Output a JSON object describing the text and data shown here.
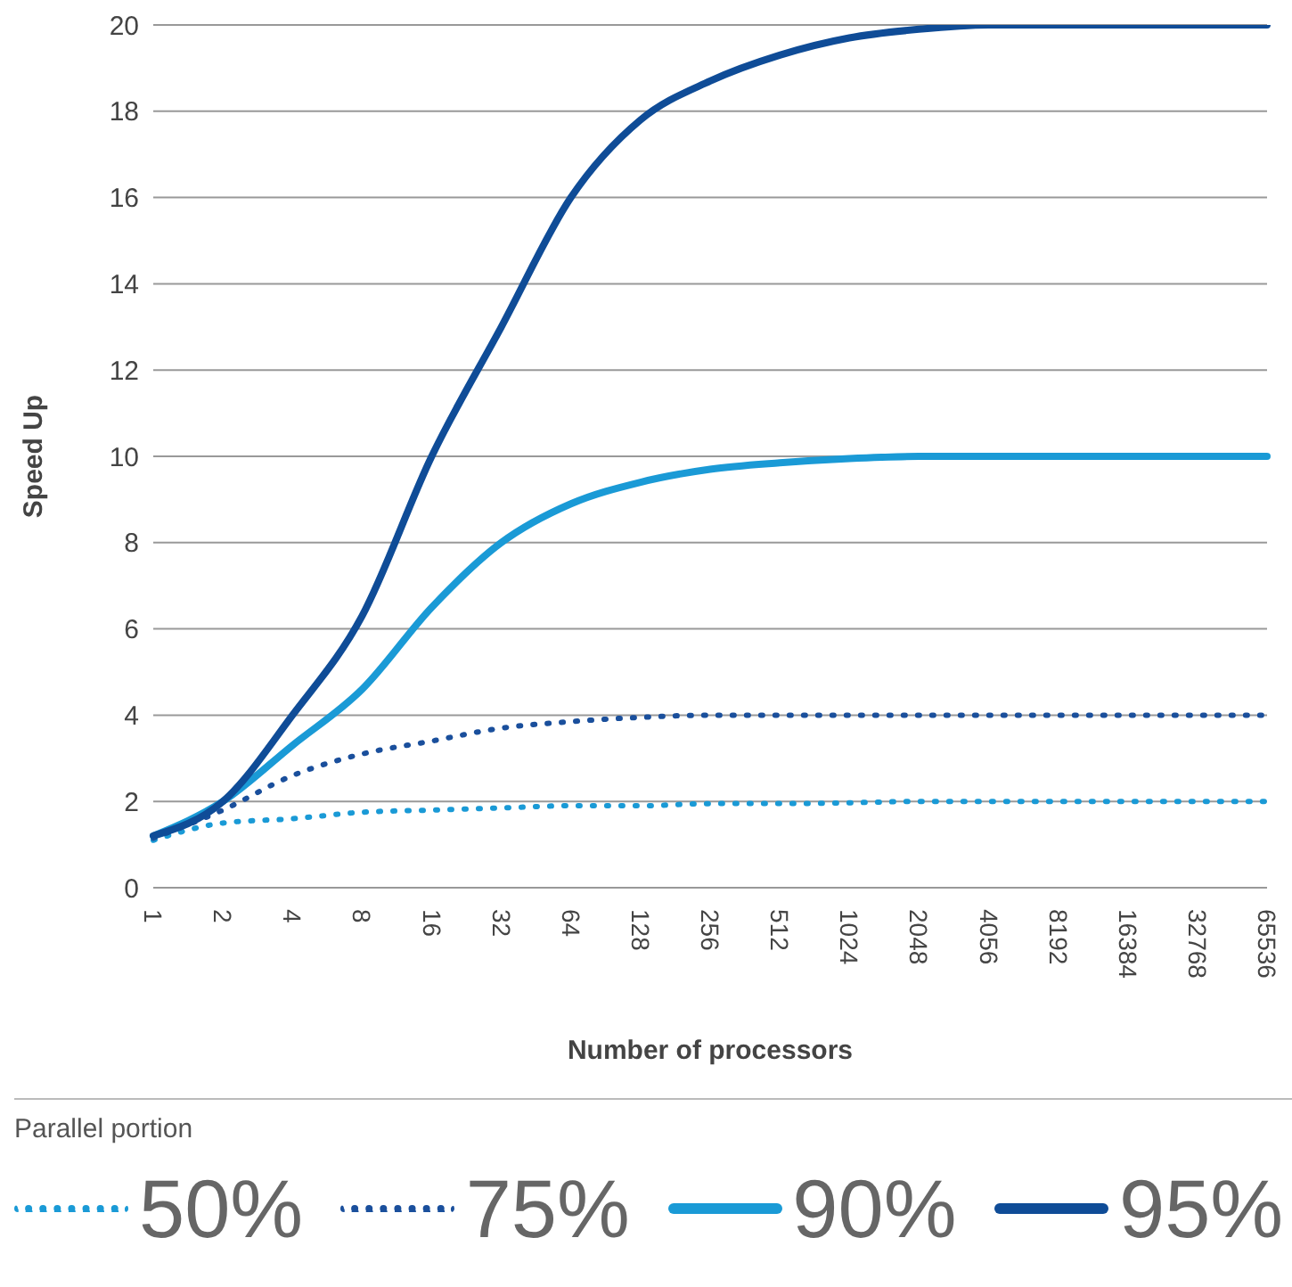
{
  "chart_data": {
    "type": "line",
    "xlabel": "Number of processors",
    "ylabel": "Speed Up",
    "legend_title": "Parallel portion",
    "categories": [
      "1",
      "2",
      "4",
      "8",
      "16",
      "32",
      "64",
      "128",
      "256",
      "512",
      "1024",
      "2048",
      "4056",
      "8192",
      "16384",
      "32768",
      "65536"
    ],
    "series": [
      {
        "name": "50%",
        "color": "#1a9ad6",
        "line_style": "dotted",
        "values": [
          1.1,
          1.5,
          1.6,
          1.75,
          1.8,
          1.85,
          1.9,
          1.9,
          1.95,
          1.95,
          1.97,
          2,
          2,
          2,
          2,
          2,
          2
        ]
      },
      {
        "name": "75%",
        "color": "#1a4f9c",
        "line_style": "dotted",
        "values": [
          1.15,
          1.8,
          2.6,
          3.1,
          3.4,
          3.7,
          3.85,
          3.95,
          4,
          4,
          4,
          4,
          4,
          4,
          4,
          4,
          4
        ]
      },
      {
        "name": "90%",
        "color": "#1a9ad6",
        "line_style": "solid",
        "values": [
          1.2,
          2,
          3.3,
          4.6,
          6.5,
          8,
          8.9,
          9.4,
          9.7,
          9.85,
          9.95,
          10,
          10,
          10,
          10,
          10,
          10
        ]
      },
      {
        "name": "95%",
        "color": "#0f4c97",
        "line_style": "solid",
        "values": [
          1.2,
          2,
          4,
          6.3,
          10,
          13,
          16,
          17.8,
          18.7,
          19.3,
          19.7,
          19.9,
          20,
          20,
          20,
          20,
          20
        ]
      }
    ],
    "ylim": [
      0,
      20
    ],
    "yticks": [
      0,
      2,
      4,
      6,
      8,
      10,
      12,
      14,
      16,
      18,
      20
    ],
    "grid": "y",
    "legend": "bottom",
    "marker": "none"
  }
}
